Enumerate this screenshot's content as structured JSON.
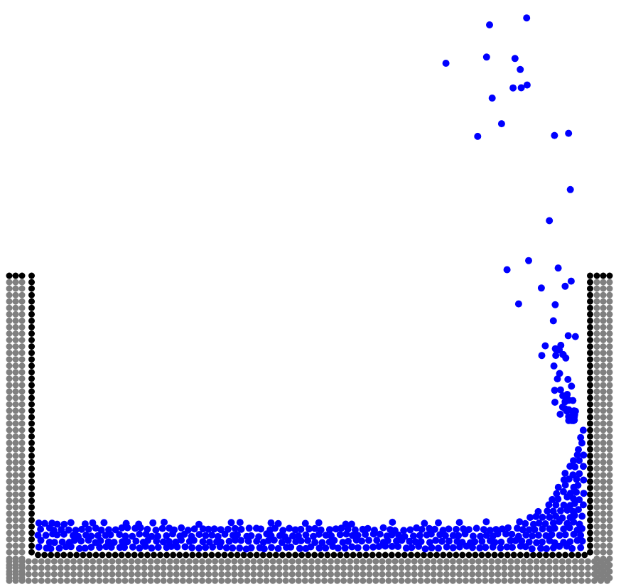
{
  "scene": {
    "colors": {
      "background": "#ffffff",
      "fluid": "#0000ff",
      "wall_inner": "#000000",
      "wall_outer": "#808080"
    },
    "fluid": {
      "settled_layer_left_thickness": 0.105,
      "settled_layer_right_thickness": 0.1,
      "right_column_height": 0.47,
      "spray_height": 0.98
    }
  }
}
